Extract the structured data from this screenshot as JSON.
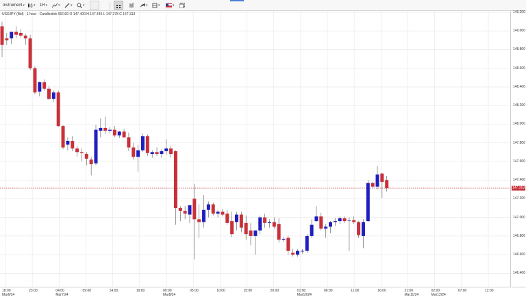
{
  "toolbar": {
    "instrument_label": "Instrument",
    "timeframe_label": "1H",
    "tools": [
      {
        "name": "chart-type",
        "icon": "candlestick-icon"
      },
      {
        "name": "indicators",
        "icon": "indicator-icon"
      },
      {
        "name": "drawing",
        "icon": "pencil-icon"
      },
      {
        "name": "zoom",
        "icon": "zoom-icon"
      },
      {
        "name": "crosshair",
        "icon": "crosshair-icon"
      },
      {
        "name": "bar-type",
        "icon": "bars-icon"
      },
      {
        "name": "share",
        "icon": "share-icon"
      },
      {
        "name": "flag",
        "icon": "flag-icon"
      },
      {
        "name": "layout",
        "icon": "window-icon"
      }
    ]
  },
  "chart_info": "USDJPY (Bid) - 1 hour - Candlestick   90/100   O 147.400   H 147.446   L 147.278   C 147.313",
  "current_price_label": "147.313",
  "colors": {
    "up": "#1f1fbf",
    "down": "#c8313a",
    "grid": "#e9e9e9",
    "current_line": "#c8313a"
  },
  "chart_data": {
    "type": "candlestick",
    "instrument": "USDJPY (Bid)",
    "interval": "1 hour",
    "last_ohlc": {
      "open": 147.4,
      "high": 147.446,
      "low": 147.278,
      "close": 147.313
    },
    "current_price": 147.313,
    "ylim": [
      146.3,
      149.2
    ],
    "y_ticks": [
      "149.200",
      "149.000",
      "148.800",
      "148.600",
      "148.400",
      "148.200",
      "148.000",
      "147.800",
      "147.600",
      "147.400",
      "147.200",
      "147.000",
      "146.800",
      "146.600",
      "146.400"
    ],
    "x_ticks": [
      {
        "t": "18:00",
        "d": "Mar6/24"
      },
      {
        "t": "23:00",
        "d": ""
      },
      {
        "t": "04:00",
        "d": "Mar7/24"
      },
      {
        "t": "09:00",
        "d": ""
      },
      {
        "t": "14:00",
        "d": ""
      },
      {
        "t": "19:00",
        "d": ""
      },
      {
        "t": "00:00",
        "d": "Mar8/24"
      },
      {
        "t": "05:00",
        "d": ""
      },
      {
        "t": "10:00",
        "d": ""
      },
      {
        "t": "15:00",
        "d": ""
      },
      {
        "t": "20:00",
        "d": ""
      },
      {
        "t": "01:00",
        "d": "Mar10/24"
      },
      {
        "t": "06:00",
        "d": ""
      },
      {
        "t": "11:00",
        "d": ""
      },
      {
        "t": "16:00",
        "d": ""
      },
      {
        "t": "21:00",
        "d": "Mar11/24"
      },
      {
        "t": "02:00",
        "d": "Mar12/24"
      },
      {
        "t": "07:00",
        "d": ""
      },
      {
        "t": "12:00",
        "d": ""
      }
    ],
    "candles": [
      {
        "o": 149.05,
        "h": 149.1,
        "l": 148.72,
        "c": 148.85
      },
      {
        "o": 148.92,
        "h": 148.98,
        "l": 148.85,
        "c": 148.9
      },
      {
        "o": 148.92,
        "h": 148.99,
        "l": 148.86,
        "c": 148.99
      },
      {
        "o": 148.99,
        "h": 149.05,
        "l": 148.92,
        "c": 148.96
      },
      {
        "o": 148.98,
        "h": 149.02,
        "l": 148.93,
        "c": 148.95
      },
      {
        "o": 148.95,
        "h": 148.97,
        "l": 148.85,
        "c": 148.92
      },
      {
        "o": 148.92,
        "h": 148.96,
        "l": 148.58,
        "c": 148.6
      },
      {
        "o": 148.6,
        "h": 148.62,
        "l": 148.32,
        "c": 148.34
      },
      {
        "o": 148.35,
        "h": 148.46,
        "l": 148.3,
        "c": 148.45
      },
      {
        "o": 148.45,
        "h": 148.48,
        "l": 148.36,
        "c": 148.38
      },
      {
        "o": 148.38,
        "h": 148.41,
        "l": 148.26,
        "c": 148.27
      },
      {
        "o": 148.27,
        "h": 148.36,
        "l": 148.24,
        "c": 148.34
      },
      {
        "o": 148.34,
        "h": 148.36,
        "l": 147.97,
        "c": 147.98
      },
      {
        "o": 147.98,
        "h": 147.99,
        "l": 147.73,
        "c": 147.75
      },
      {
        "o": 147.78,
        "h": 147.86,
        "l": 147.72,
        "c": 147.82
      },
      {
        "o": 147.82,
        "h": 147.87,
        "l": 147.71,
        "c": 147.74
      },
      {
        "o": 147.74,
        "h": 147.77,
        "l": 147.65,
        "c": 147.7
      },
      {
        "o": 147.7,
        "h": 147.74,
        "l": 147.6,
        "c": 147.69
      },
      {
        "o": 147.68,
        "h": 147.7,
        "l": 147.56,
        "c": 147.63
      },
      {
        "o": 147.62,
        "h": 147.65,
        "l": 147.45,
        "c": 147.57
      },
      {
        "o": 147.58,
        "h": 147.99,
        "l": 147.56,
        "c": 147.94
      },
      {
        "o": 147.93,
        "h": 148.06,
        "l": 147.86,
        "c": 147.96
      },
      {
        "o": 147.96,
        "h": 148.08,
        "l": 147.89,
        "c": 147.93
      },
      {
        "o": 147.93,
        "h": 147.97,
        "l": 147.9,
        "c": 147.94
      },
      {
        "o": 147.94,
        "h": 147.98,
        "l": 147.86,
        "c": 147.88
      },
      {
        "o": 147.88,
        "h": 147.93,
        "l": 147.85,
        "c": 147.92
      },
      {
        "o": 147.92,
        "h": 147.95,
        "l": 147.85,
        "c": 147.86
      },
      {
        "o": 147.86,
        "h": 147.91,
        "l": 147.71,
        "c": 147.75
      },
      {
        "o": 147.75,
        "h": 147.8,
        "l": 147.62,
        "c": 147.65
      },
      {
        "o": 147.65,
        "h": 147.78,
        "l": 147.49,
        "c": 147.72
      },
      {
        "o": 147.72,
        "h": 147.9,
        "l": 147.7,
        "c": 147.87
      },
      {
        "o": 147.87,
        "h": 147.89,
        "l": 147.66,
        "c": 147.69
      },
      {
        "o": 147.68,
        "h": 147.72,
        "l": 147.64,
        "c": 147.7
      },
      {
        "o": 147.7,
        "h": 147.75,
        "l": 147.66,
        "c": 147.68
      },
      {
        "o": 147.68,
        "h": 147.73,
        "l": 147.64,
        "c": 147.71
      },
      {
        "o": 147.71,
        "h": 147.84,
        "l": 147.67,
        "c": 147.74
      },
      {
        "o": 147.74,
        "h": 147.77,
        "l": 147.64,
        "c": 147.68
      },
      {
        "o": 147.71,
        "h": 147.72,
        "l": 146.92,
        "c": 147.1
      },
      {
        "o": 147.1,
        "h": 147.12,
        "l": 146.96,
        "c": 147.07
      },
      {
        "o": 147.07,
        "h": 147.12,
        "l": 146.98,
        "c": 147.04
      },
      {
        "o": 147.03,
        "h": 147.12,
        "l": 146.94,
        "c": 147.13
      },
      {
        "o": 147.2,
        "h": 147.36,
        "l": 146.55,
        "c": 146.98
      },
      {
        "o": 146.98,
        "h": 147.14,
        "l": 146.78,
        "c": 146.95
      },
      {
        "o": 146.95,
        "h": 147.24,
        "l": 146.89,
        "c": 147.08
      },
      {
        "o": 147.08,
        "h": 147.17,
        "l": 147.0,
        "c": 147.14
      },
      {
        "o": 147.14,
        "h": 147.16,
        "l": 147.02,
        "c": 147.04
      },
      {
        "o": 147.04,
        "h": 147.08,
        "l": 147.0,
        "c": 147.06
      },
      {
        "o": 147.06,
        "h": 147.09,
        "l": 147.01,
        "c": 147.03
      },
      {
        "o": 147.04,
        "h": 147.08,
        "l": 146.92,
        "c": 146.94
      },
      {
        "o": 146.96,
        "h": 147.06,
        "l": 146.79,
        "c": 146.82
      },
      {
        "o": 146.95,
        "h": 147.06,
        "l": 146.86,
        "c": 147.03
      },
      {
        "o": 147.03,
        "h": 147.06,
        "l": 146.84,
        "c": 146.89
      },
      {
        "o": 146.94,
        "h": 147.02,
        "l": 146.76,
        "c": 146.82
      },
      {
        "o": 146.86,
        "h": 146.94,
        "l": 146.7,
        "c": 146.8
      },
      {
        "o": 146.8,
        "h": 146.85,
        "l": 146.6,
        "c": 146.86
      },
      {
        "o": 146.86,
        "h": 147.02,
        "l": 146.82,
        "c": 147.0
      },
      {
        "o": 147.0,
        "h": 147.04,
        "l": 146.89,
        "c": 146.94
      },
      {
        "o": 146.94,
        "h": 146.98,
        "l": 146.89,
        "c": 146.95
      },
      {
        "o": 146.95,
        "h": 147.0,
        "l": 146.88,
        "c": 146.9
      },
      {
        "o": 146.93,
        "h": 146.99,
        "l": 146.73,
        "c": 146.76
      },
      {
        "o": 146.76,
        "h": 146.79,
        "l": 146.74,
        "c": 146.77
      },
      {
        "o": 146.78,
        "h": 146.8,
        "l": 146.6,
        "c": 146.64
      },
      {
        "o": 146.62,
        "h": 146.66,
        "l": 146.58,
        "c": 146.6
      },
      {
        "o": 146.6,
        "h": 146.66,
        "l": 146.58,
        "c": 146.64
      },
      {
        "o": 146.64,
        "h": 146.66,
        "l": 146.61,
        "c": 146.64
      },
      {
        "o": 146.64,
        "h": 146.82,
        "l": 146.62,
        "c": 146.8
      },
      {
        "o": 146.8,
        "h": 146.98,
        "l": 146.78,
        "c": 146.92
      },
      {
        "o": 146.96,
        "h": 147.12,
        "l": 146.95,
        "c": 147.01
      },
      {
        "o": 147.01,
        "h": 147.05,
        "l": 146.86,
        "c": 146.88
      },
      {
        "o": 146.88,
        "h": 146.93,
        "l": 146.78,
        "c": 146.9
      },
      {
        "o": 146.9,
        "h": 146.96,
        "l": 146.83,
        "c": 146.95
      },
      {
        "o": 146.95,
        "h": 146.99,
        "l": 146.91,
        "c": 146.96
      },
      {
        "o": 146.96,
        "h": 147.01,
        "l": 146.93,
        "c": 146.99
      },
      {
        "o": 146.99,
        "h": 147.01,
        "l": 146.94,
        "c": 146.96
      },
      {
        "o": 146.97,
        "h": 147.0,
        "l": 146.64,
        "c": 146.97
      },
      {
        "o": 146.97,
        "h": 147.01,
        "l": 146.93,
        "c": 146.95
      },
      {
        "o": 146.95,
        "h": 146.96,
        "l": 146.78,
        "c": 146.81
      },
      {
        "o": 146.8,
        "h": 146.98,
        "l": 146.67,
        "c": 146.95
      },
      {
        "o": 146.96,
        "h": 147.4,
        "l": 146.95,
        "c": 147.37
      },
      {
        "o": 147.37,
        "h": 147.38,
        "l": 147.31,
        "c": 147.33
      },
      {
        "o": 147.33,
        "h": 147.55,
        "l": 147.3,
        "c": 147.46
      },
      {
        "o": 147.47,
        "h": 147.48,
        "l": 147.21,
        "c": 147.38
      },
      {
        "o": 147.4,
        "h": 147.446,
        "l": 147.278,
        "c": 147.313
      }
    ]
  }
}
